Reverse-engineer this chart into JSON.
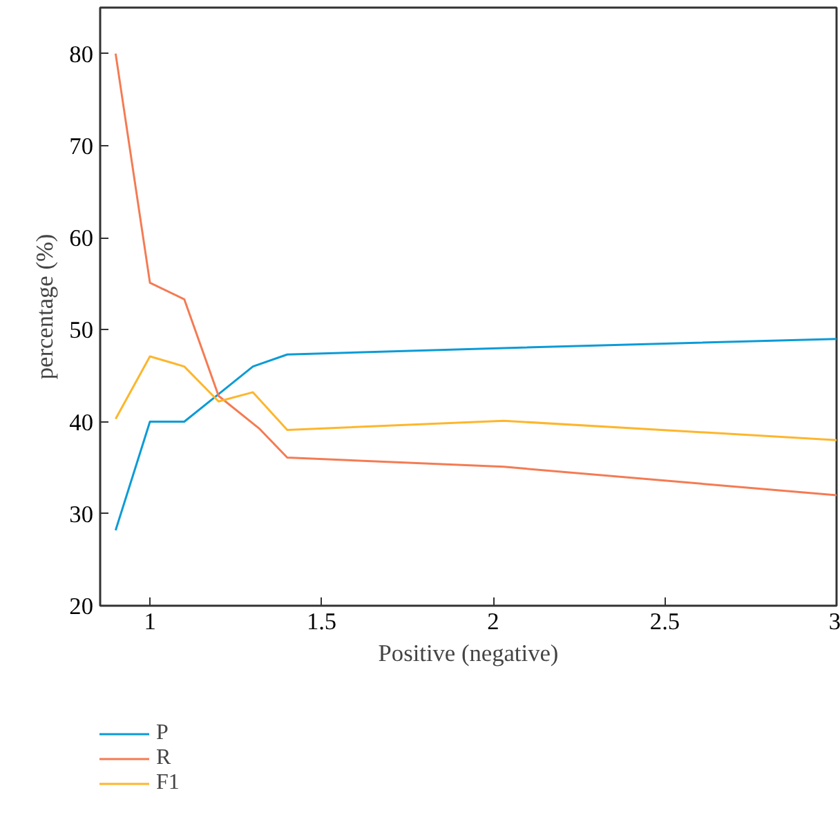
{
  "chart_data": {
    "type": "line",
    "xlabel": "Positive (negative)",
    "ylabel": "percentage (%)",
    "x": [
      0.9,
      1,
      1.1,
      1.2,
      1.3,
      1.4,
      2.03,
      3
    ],
    "series": [
      {
        "name": "P",
        "color": "#0b9bd6",
        "values": [
          28.2,
          40,
          40,
          43,
          46,
          47.3,
          48,
          49
        ]
      },
      {
        "name": "R",
        "color": "#f47b53",
        "x": [
          0.9,
          1,
          1.1,
          1.2,
          1.32,
          1.4,
          2.03,
          3
        ],
        "values": [
          80,
          55.1,
          53.3,
          42.8,
          39.2,
          36.1,
          35.1,
          32
        ]
      },
      {
        "name": "F1",
        "color": "#fdb62c",
        "values": [
          40.3,
          47.1,
          46,
          42.2,
          43.2,
          39.1,
          40.1,
          38
        ]
      }
    ],
    "xlim": [
      0.855,
      3
    ],
    "ylim": [
      20,
      85
    ],
    "xticks": [
      1,
      1.5,
      2,
      2.5,
      3
    ],
    "yticks": [
      20,
      30,
      40,
      50,
      60,
      70,
      80
    ],
    "grid": false,
    "legend": "bottom left",
    "line_style": "solid",
    "marker": "none"
  }
}
